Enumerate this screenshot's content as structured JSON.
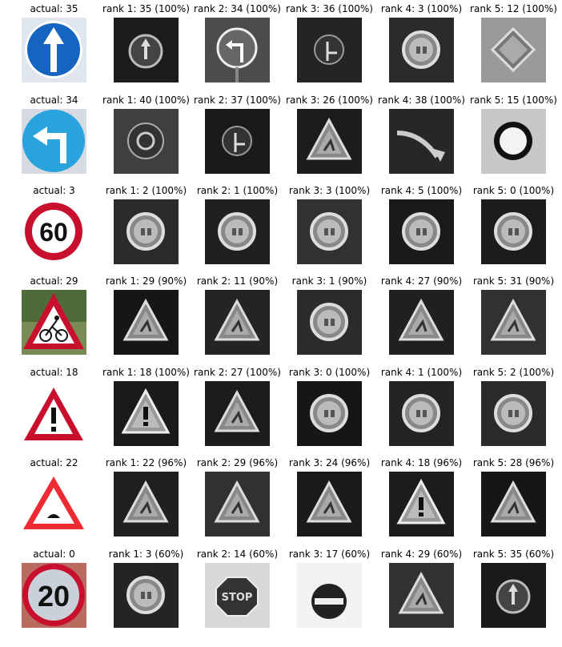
{
  "rows": [
    {
      "actual_label": "actual: 35",
      "actual_sign": "ahead-only-icon",
      "ranks": [
        {
          "label": "rank 1: 35 (100%)",
          "sign": "ahead-only-icon"
        },
        {
          "label": "rank 2: 34 (100%)",
          "sign": "turn-left-icon"
        },
        {
          "label": "rank 3: 36 (100%)",
          "sign": "straight-or-right-icon"
        },
        {
          "label": "rank 4: 3 (100%)",
          "sign": "speed-limit-icon"
        },
        {
          "label": "rank 5: 12 (100%)",
          "sign": "priority-road-icon"
        }
      ]
    },
    {
      "actual_label": "actual: 34",
      "actual_sign": "turn-left-icon",
      "ranks": [
        {
          "label": "rank 1: 40 (100%)",
          "sign": "roundabout-icon"
        },
        {
          "label": "rank 2: 37 (100%)",
          "sign": "straight-or-left-icon"
        },
        {
          "label": "rank 3: 26 (100%)",
          "sign": "warning-triangle-icon"
        },
        {
          "label": "rank 4: 38 (100%)",
          "sign": "keep-right-icon"
        },
        {
          "label": "rank 5: 15 (100%)",
          "sign": "no-vehicles-icon"
        }
      ]
    },
    {
      "actual_label": "actual: 3",
      "actual_sign": "speed-limit-60-icon",
      "ranks": [
        {
          "label": "rank 1: 2 (100%)",
          "sign": "speed-limit-icon"
        },
        {
          "label": "rank 2: 1 (100%)",
          "sign": "speed-limit-icon"
        },
        {
          "label": "rank 3: 3 (100%)",
          "sign": "speed-limit-icon"
        },
        {
          "label": "rank 4: 5 (100%)",
          "sign": "speed-limit-icon"
        },
        {
          "label": "rank 5: 0 (100%)",
          "sign": "speed-limit-icon"
        }
      ]
    },
    {
      "actual_label": "actual: 29",
      "actual_sign": "bicycles-crossing-icon",
      "ranks": [
        {
          "label": "rank 1: 29 (90%)",
          "sign": "warning-triangle-icon"
        },
        {
          "label": "rank 2: 11 (90%)",
          "sign": "warning-triangle-icon"
        },
        {
          "label": "rank 3: 1 (90%)",
          "sign": "speed-limit-icon"
        },
        {
          "label": "rank 4: 27 (90%)",
          "sign": "warning-triangle-icon"
        },
        {
          "label": "rank 5: 31 (90%)",
          "sign": "warning-triangle-icon"
        }
      ]
    },
    {
      "actual_label": "actual: 18",
      "actual_sign": "general-caution-icon",
      "ranks": [
        {
          "label": "rank 1: 18 (100%)",
          "sign": "general-caution-icon"
        },
        {
          "label": "rank 2: 27 (100%)",
          "sign": "warning-triangle-icon"
        },
        {
          "label": "rank 3: 0 (100%)",
          "sign": "speed-limit-icon"
        },
        {
          "label": "rank 4: 1 (100%)",
          "sign": "speed-limit-icon"
        },
        {
          "label": "rank 5: 2 (100%)",
          "sign": "speed-limit-icon"
        }
      ]
    },
    {
      "actual_label": "actual: 22",
      "actual_sign": "bumpy-road-icon",
      "ranks": [
        {
          "label": "rank 1: 22 (96%)",
          "sign": "warning-triangle-icon"
        },
        {
          "label": "rank 2: 29 (96%)",
          "sign": "warning-triangle-icon"
        },
        {
          "label": "rank 3: 24 (96%)",
          "sign": "warning-triangle-icon"
        },
        {
          "label": "rank 4: 18 (96%)",
          "sign": "general-caution-icon"
        },
        {
          "label": "rank 5: 28 (96%)",
          "sign": "warning-triangle-icon"
        }
      ]
    },
    {
      "actual_label": "actual: 0",
      "actual_sign": "speed-limit-20-icon",
      "ranks": [
        {
          "label": "rank 1: 3 (60%)",
          "sign": "speed-limit-icon"
        },
        {
          "label": "rank 2: 14 (60%)",
          "sign": "stop-icon"
        },
        {
          "label": "rank 3: 17 (60%)",
          "sign": "no-entry-icon"
        },
        {
          "label": "rank 4: 29 (60%)",
          "sign": "warning-triangle-icon"
        },
        {
          "label": "rank 5: 35 (60%)",
          "sign": "ahead-only-icon"
        }
      ]
    }
  ],
  "colors": {
    "sign_blue": "#1565c0",
    "sign_light_blue": "#29a3dd",
    "sign_red": "#c8102e",
    "background": "#ffffff"
  }
}
